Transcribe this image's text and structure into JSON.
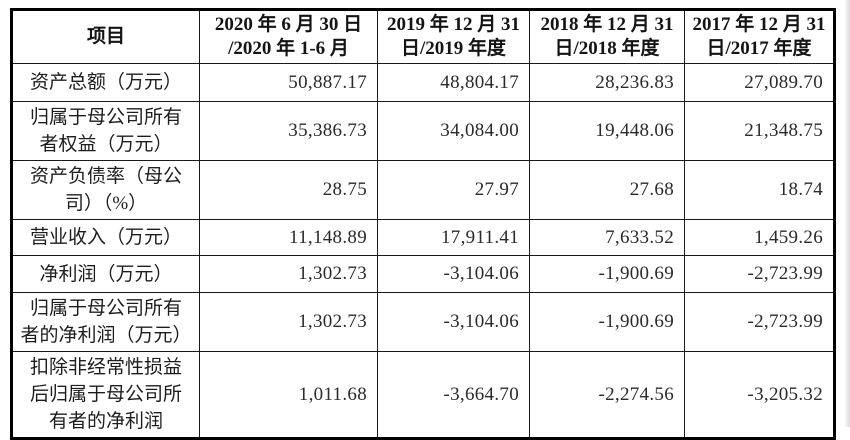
{
  "table": {
    "columns": [
      {
        "label": "项目"
      },
      {
        "label": "2020 年 6 月 30 日\n/2020 年 1-6 月"
      },
      {
        "label": "2019 年 12 月 31\n日/2019 年度"
      },
      {
        "label": "2018 年 12 月 31\n日/2018 年度"
      },
      {
        "label": "2017 年 12 月 31\n日/2017 年度"
      }
    ],
    "rows": [
      {
        "label": "资产总额（万元）",
        "values": [
          "50,887.17",
          "48,804.17",
          "28,236.83",
          "27,089.70"
        ]
      },
      {
        "label": "归属于母公司所有\n者权益（万元）",
        "values": [
          "35,386.73",
          "34,084.00",
          "19,448.06",
          "21,348.75"
        ]
      },
      {
        "label": "资产负债率（母公\n司）（%）",
        "values": [
          "28.75",
          "27.97",
          "27.68",
          "18.74"
        ]
      },
      {
        "label": "营业收入（万元）",
        "values": [
          "11,148.89",
          "17,911.41",
          "7,633.52",
          "1,459.26"
        ]
      },
      {
        "label": "净利润（万元）",
        "values": [
          "1,302.73",
          "-3,104.06",
          "-1,900.69",
          "-2,723.99"
        ]
      },
      {
        "label": "归属于母公司所有\n者的净利润（万元）",
        "values": [
          "1,302.73",
          "-3,104.06",
          "-1,900.69",
          "-2,723.99"
        ]
      },
      {
        "label": "扣除非经常性损益\n后归属于母公司所\n有者的净利润",
        "values": [
          "1,011.68",
          "-3,664.70",
          "-2,274.56",
          "-3,205.32"
        ]
      }
    ]
  },
  "colors": {
    "outer_border": "#000000",
    "inner_border": "#1a1a1a",
    "text": "#1f1f1f",
    "background": "#ffffff"
  }
}
